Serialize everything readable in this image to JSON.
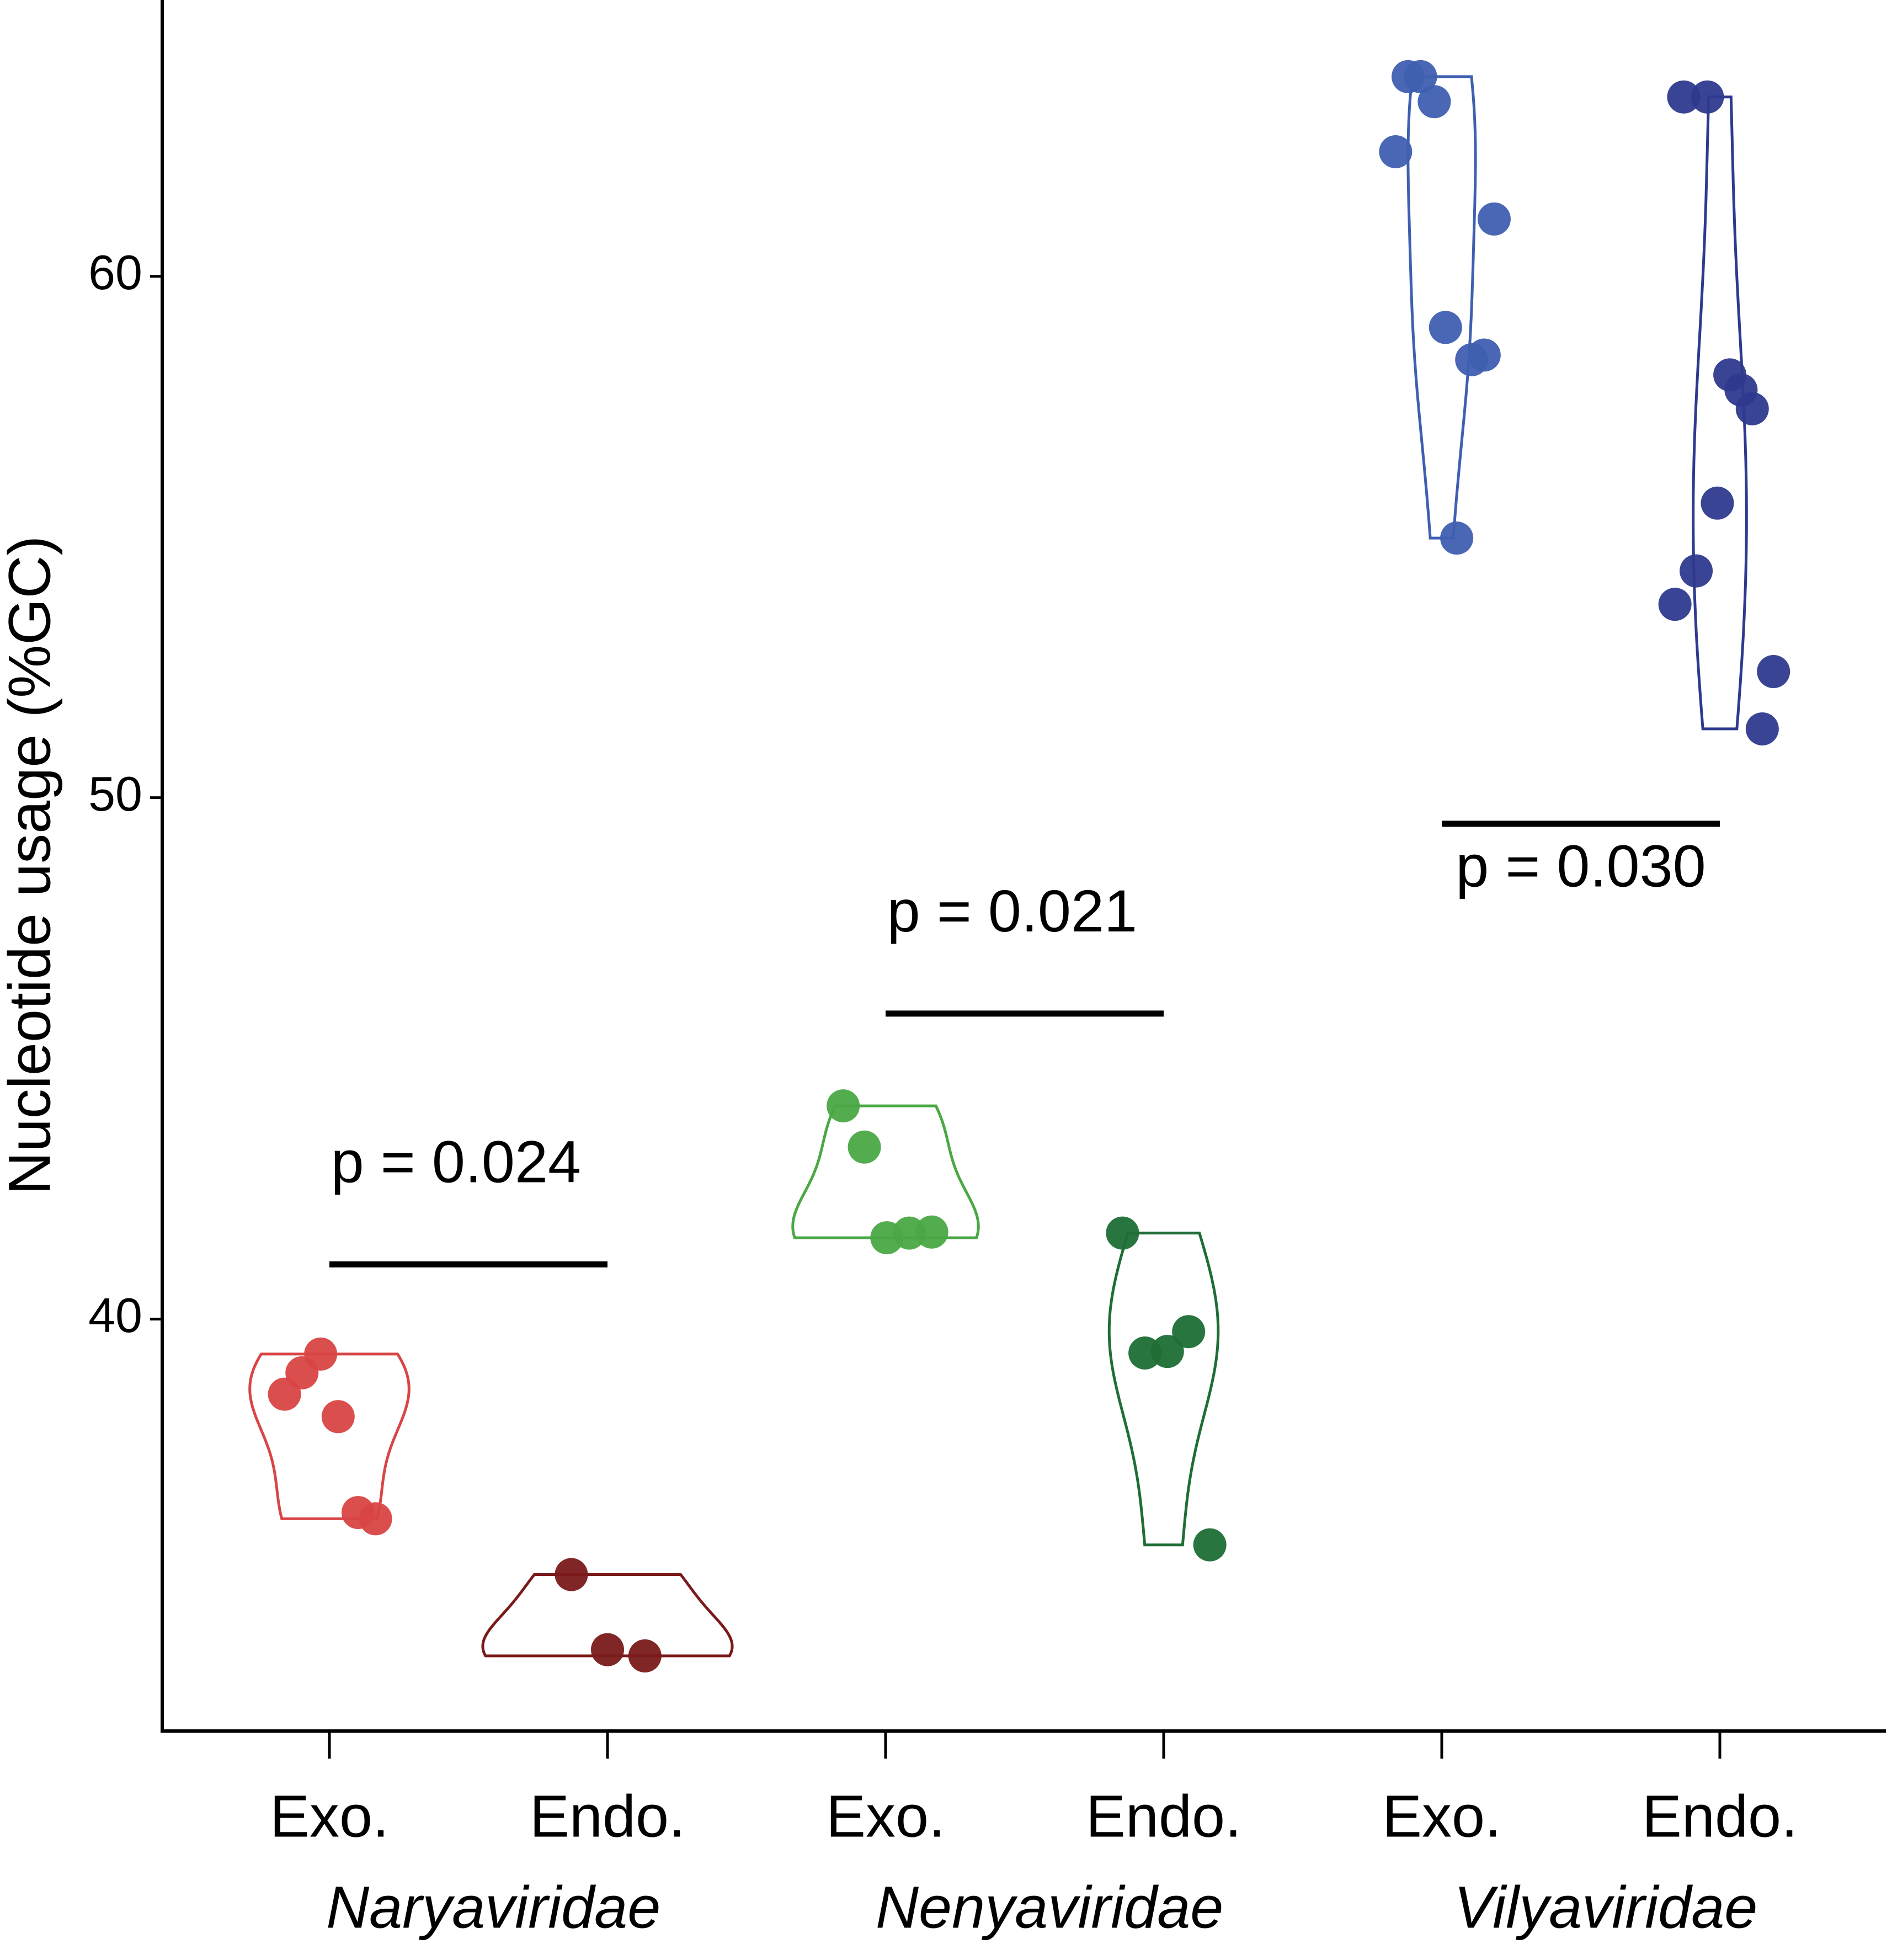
{
  "chart_data": {
    "type": "violin",
    "y_label": "Nucleotide usage (%GC)",
    "ylim": [
      32.1,
      65.3
    ],
    "yticks": [
      40,
      50,
      60
    ],
    "groups": [
      {
        "name": "Naryaviridae",
        "series": [
          {
            "name": "Exo.",
            "color": "#d94545",
            "values": [
              38.56,
              38.97,
              39.33,
              38.13,
              36.29,
              36.17
            ]
          },
          {
            "name": "Endo.",
            "color": "#7a1a1a",
            "values": [
              35.1,
              33.66,
              33.54
            ]
          }
        ],
        "comparison": {
          "label": "p = 0.024",
          "y": 41.05
        }
      },
      {
        "name": "Nenyaviridae",
        "series": [
          {
            "name": "Exo.",
            "color": "#4aa844",
            "values": [
              44.09,
              43.3,
              41.56,
              41.65,
              41.67
            ]
          },
          {
            "name": "Endo.",
            "color": "#1e6e35",
            "values": [
              41.65,
              39.35,
              39.38,
              39.76,
              35.67
            ]
          }
        ],
        "comparison": {
          "label": "p = 0.021",
          "y": 45.86
        }
      },
      {
        "name": "Vilyaviridae",
        "series": [
          {
            "name": "Exo.",
            "color": "#3f5fb0",
            "values": [
              62.39,
              63.83,
              63.83,
              63.35,
              61.1,
              59.02,
              58.4,
              58.49,
              54.98
            ]
          },
          {
            "name": "Endo.",
            "color": "#2e3a8e",
            "values": [
              63.44,
              63.44,
              58.11,
              57.82,
              57.46,
              55.65,
              54.35,
              53.71,
              52.42,
              51.32
            ]
          }
        ],
        "comparison": {
          "label": "p = 0.030",
          "y": 49.5
        }
      }
    ]
  }
}
